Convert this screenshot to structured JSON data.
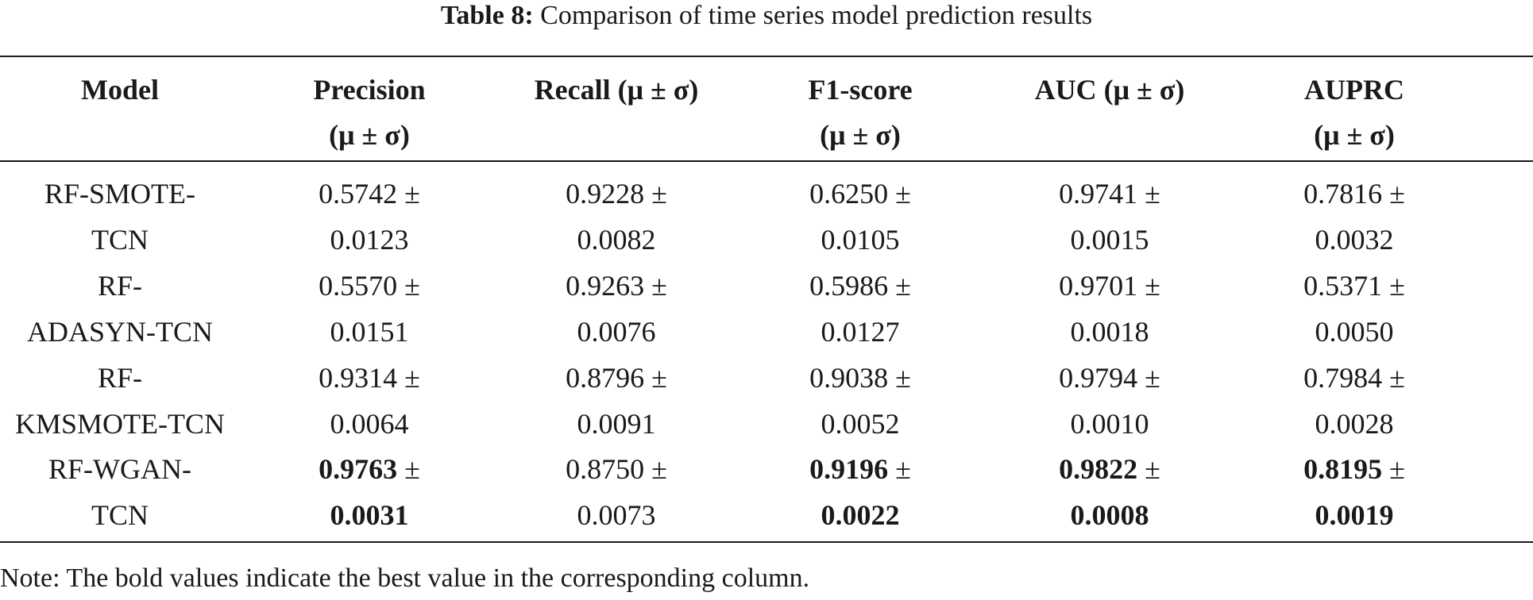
{
  "table": {
    "caption": {
      "label": "Table 8:",
      "text": "Comparison of time series model prediction results"
    },
    "headers": [
      [
        "Model"
      ],
      [
        "Precision",
        "(μ ± σ)"
      ],
      [
        "Recall (μ ± σ)"
      ],
      [
        "F1-score",
        "(μ ± σ)"
      ],
      [
        "AUC (μ ± σ)"
      ],
      [
        "AUPRC",
        "(μ ± σ)"
      ]
    ],
    "pm": "±",
    "rows": [
      {
        "model": [
          "RF-SMOTE-",
          "TCN"
        ],
        "cells": [
          {
            "mean": "0.5742",
            "sd": "0.0123"
          },
          {
            "mean": "0.9228",
            "sd": "0.0082"
          },
          {
            "mean": "0.6250",
            "sd": "0.0105"
          },
          {
            "mean": "0.9741",
            "sd": "0.0015"
          },
          {
            "mean": "0.7816",
            "sd": "0.0032"
          }
        ]
      },
      {
        "model": [
          "RF-",
          "ADASYN-TCN"
        ],
        "cells": [
          {
            "mean": "0.5570",
            "sd": "0.0151"
          },
          {
            "mean": "0.9263",
            "sd": "0.0076"
          },
          {
            "mean": "0.5986",
            "sd": "0.0127"
          },
          {
            "mean": "0.9701",
            "sd": "0.0018"
          },
          {
            "mean": "0.5371",
            "sd": "0.0050"
          }
        ]
      },
      {
        "model": [
          "RF-",
          "KMSMOTE-TCN"
        ],
        "cells": [
          {
            "mean": "0.9314",
            "sd": "0.0064"
          },
          {
            "mean": "0.8796",
            "sd": "0.0091"
          },
          {
            "mean": "0.9038",
            "sd": "0.0052"
          },
          {
            "mean": "0.9794",
            "sd": "0.0010"
          },
          {
            "mean": "0.7984",
            "sd": "0.0028"
          }
        ]
      },
      {
        "model": [
          "RF-WGAN-",
          "TCN"
        ],
        "cells": [
          {
            "mean": "0.9763",
            "sd": "0.0031",
            "best": true
          },
          {
            "mean": "0.8750",
            "sd": "0.0073"
          },
          {
            "mean": "0.9196",
            "sd": "0.0022",
            "best": true
          },
          {
            "mean": "0.9822",
            "sd": "0.0008",
            "best": true
          },
          {
            "mean": "0.8195",
            "sd": "0.0019",
            "best": true
          }
        ]
      }
    ],
    "note": "Note: The bold values indicate the best value in the corresponding column."
  }
}
